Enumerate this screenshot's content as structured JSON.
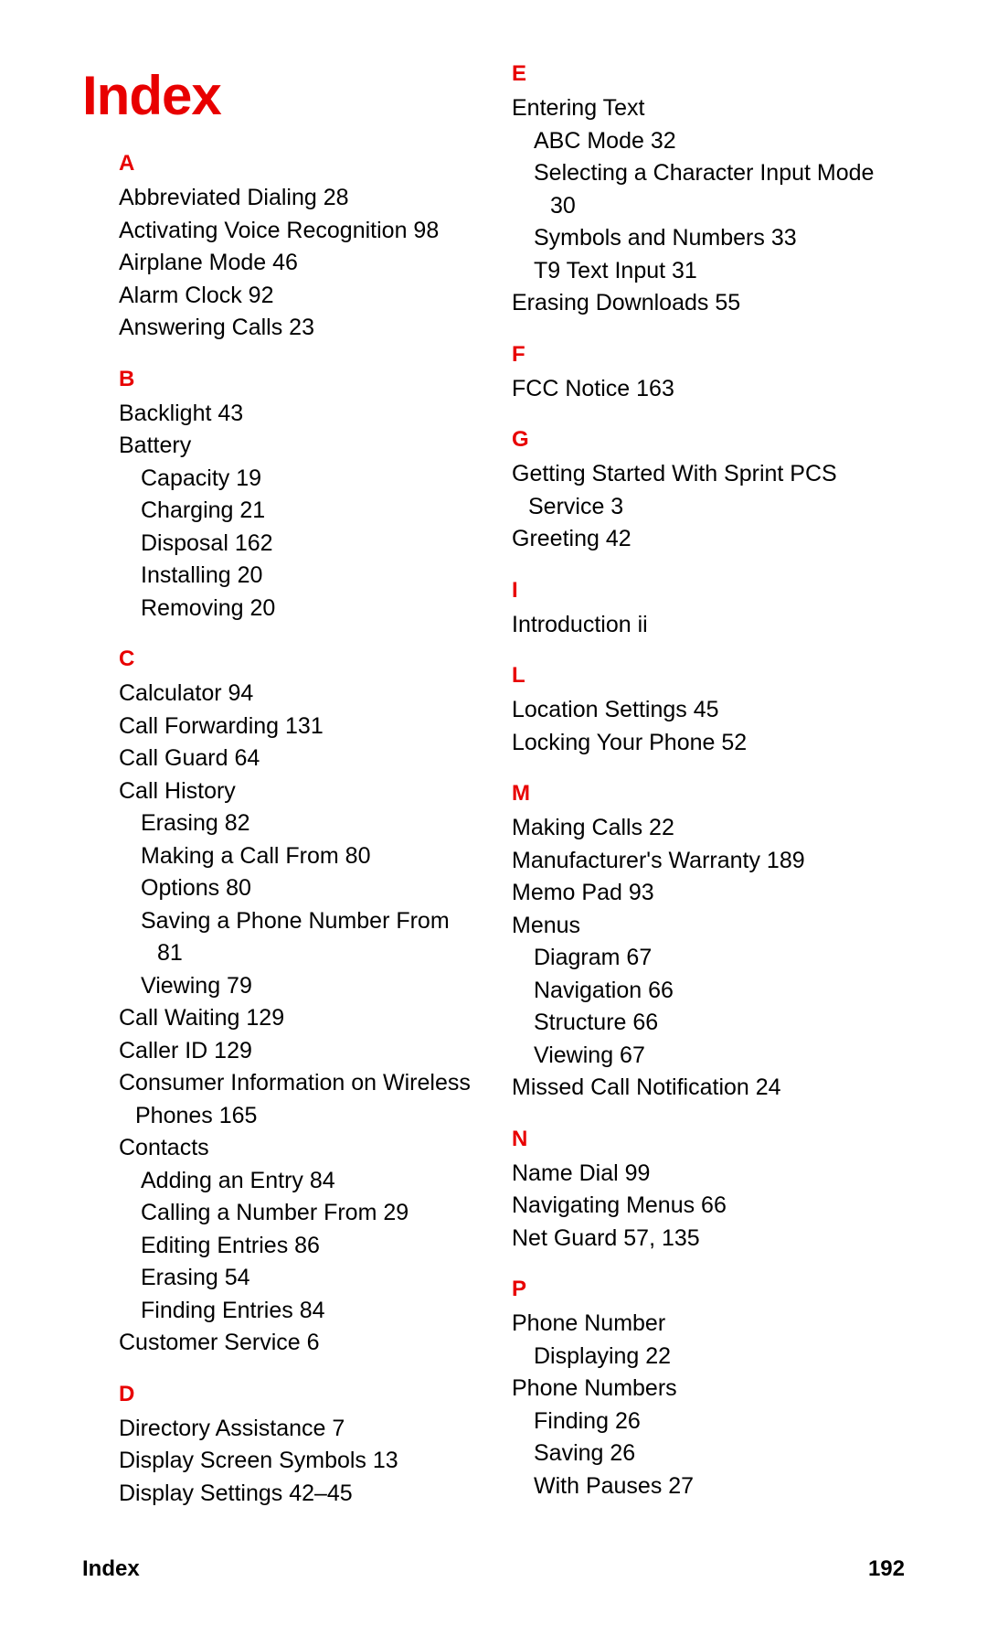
{
  "title": "Index",
  "footer": {
    "label": "Index",
    "page": "192"
  },
  "colors": {
    "accent": "#e80000",
    "text": "#000000",
    "bg": "#ffffff"
  },
  "left": [
    {
      "type": "letter",
      "text": "A",
      "first": true
    },
    {
      "type": "entry",
      "text": "Abbreviated Dialing  28"
    },
    {
      "type": "entry",
      "text": "Activating Voice Recognition  98"
    },
    {
      "type": "entry",
      "text": "Airplane Mode  46"
    },
    {
      "type": "entry",
      "text": "Alarm Clock  92"
    },
    {
      "type": "entry",
      "text": "Answering Calls  23"
    },
    {
      "type": "letter",
      "text": "B"
    },
    {
      "type": "entry",
      "text": "Backlight  43"
    },
    {
      "type": "entry",
      "text": "Battery"
    },
    {
      "type": "sub",
      "text": "Capacity  19"
    },
    {
      "type": "sub",
      "text": "Charging  21"
    },
    {
      "type": "sub",
      "text": "Disposal  162"
    },
    {
      "type": "sub",
      "text": "Installing  20"
    },
    {
      "type": "sub",
      "text": "Removing  20"
    },
    {
      "type": "letter",
      "text": "C"
    },
    {
      "type": "entry",
      "text": "Calculator  94"
    },
    {
      "type": "entry",
      "text": "Call Forwarding  131"
    },
    {
      "type": "entry",
      "text": "Call Guard  64"
    },
    {
      "type": "entry",
      "text": "Call History"
    },
    {
      "type": "sub",
      "text": "Erasing  82"
    },
    {
      "type": "sub",
      "text": "Making a Call From  80"
    },
    {
      "type": "sub",
      "text": "Options  80"
    },
    {
      "type": "sub",
      "text": "Saving a Phone Number From  81"
    },
    {
      "type": "sub",
      "text": "Viewing  79"
    },
    {
      "type": "entry",
      "text": "Call Waiting  129"
    },
    {
      "type": "entry",
      "text": "Caller ID  129"
    },
    {
      "type": "entry",
      "text": "Consumer Information on Wireless Phones  165"
    },
    {
      "type": "entry",
      "text": "Contacts"
    },
    {
      "type": "sub",
      "text": "Adding an Entry  84"
    },
    {
      "type": "sub",
      "text": "Calling a Number From  29"
    },
    {
      "type": "sub",
      "text": "Editing Entries  86"
    },
    {
      "type": "sub",
      "text": "Erasing  54"
    },
    {
      "type": "sub",
      "text": "Finding Entries  84"
    },
    {
      "type": "entry",
      "text": "Customer Service  6"
    },
    {
      "type": "letter",
      "text": "D"
    },
    {
      "type": "entry",
      "text": "Directory Assistance  7"
    },
    {
      "type": "entry",
      "text": "Display Screen Symbols  13"
    },
    {
      "type": "entry",
      "text": "Display Settings  42–45"
    }
  ],
  "right": [
    {
      "type": "letter",
      "text": "E",
      "first": true
    },
    {
      "type": "entry",
      "text": "Entering Text"
    },
    {
      "type": "sub",
      "text": "ABC Mode  32"
    },
    {
      "type": "sub",
      "text": "Selecting a Character Input Mode  30"
    },
    {
      "type": "sub",
      "text": "Symbols and Numbers  33"
    },
    {
      "type": "sub",
      "text": "T9 Text Input  31"
    },
    {
      "type": "entry",
      "text": "Erasing Downloads  55"
    },
    {
      "type": "letter",
      "text": "F"
    },
    {
      "type": "entry",
      "text": "FCC Notice  163"
    },
    {
      "type": "letter",
      "text": "G"
    },
    {
      "type": "entry",
      "text": "Getting Started With Sprint PCS Service  3"
    },
    {
      "type": "entry",
      "text": "Greeting  42"
    },
    {
      "type": "letter",
      "text": "I"
    },
    {
      "type": "entry",
      "text": "Introduction  ii"
    },
    {
      "type": "letter",
      "text": "L"
    },
    {
      "type": "entry",
      "text": "Location Settings  45"
    },
    {
      "type": "entry",
      "text": "Locking Your Phone  52"
    },
    {
      "type": "letter",
      "text": "M"
    },
    {
      "type": "entry",
      "text": "Making Calls  22"
    },
    {
      "type": "entry",
      "text": "Manufacturer's Warranty  189"
    },
    {
      "type": "entry",
      "text": "Memo Pad  93"
    },
    {
      "type": "entry",
      "text": "Menus"
    },
    {
      "type": "sub",
      "text": "Diagram  67"
    },
    {
      "type": "sub",
      "text": "Navigation  66"
    },
    {
      "type": "sub",
      "text": "Structure  66"
    },
    {
      "type": "sub",
      "text": "Viewing  67"
    },
    {
      "type": "entry",
      "text": "Missed Call Notification  24"
    },
    {
      "type": "letter",
      "text": "N"
    },
    {
      "type": "entry",
      "text": "Name Dial  99"
    },
    {
      "type": "entry",
      "text": "Navigating Menus  66"
    },
    {
      "type": "entry",
      "text": "Net Guard  57, 135"
    },
    {
      "type": "letter",
      "text": "P"
    },
    {
      "type": "entry",
      "text": "Phone Number"
    },
    {
      "type": "sub",
      "text": "Displaying  22"
    },
    {
      "type": "entry",
      "text": "Phone Numbers"
    },
    {
      "type": "sub",
      "text": "Finding  26"
    },
    {
      "type": "sub",
      "text": "Saving  26"
    },
    {
      "type": "sub",
      "text": "With Pauses  27"
    }
  ]
}
